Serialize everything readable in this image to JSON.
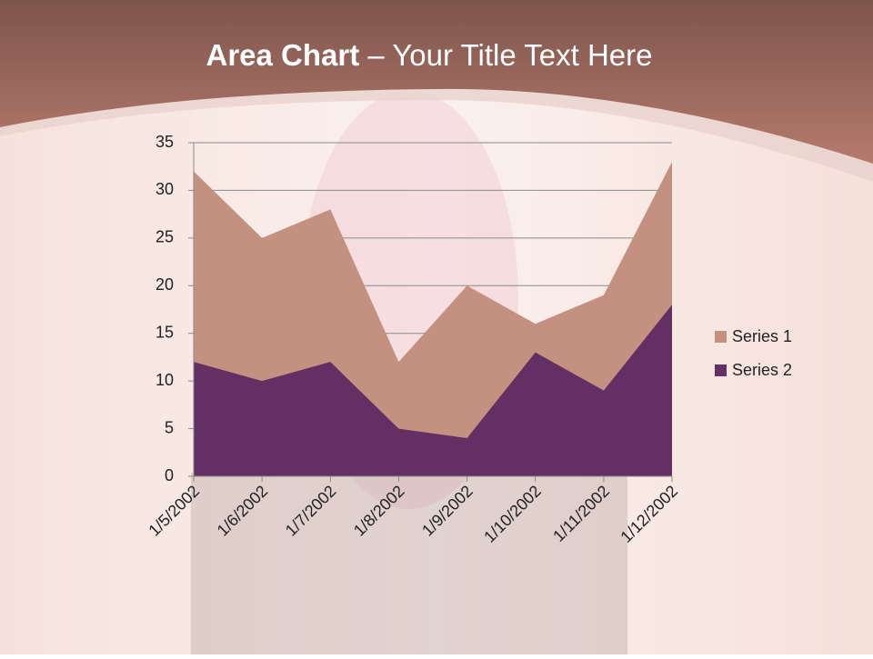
{
  "chart_data": {
    "type": "area",
    "title_parts": [
      "Area Chart",
      " – Your Title Text Here"
    ],
    "categories": [
      "1/5/2002",
      "1/6/2002",
      "1/7/2002",
      "1/8/2002",
      "1/9/2002",
      "1/10/2002",
      "1/11/2002",
      "1/12/2002"
    ],
    "series": [
      {
        "name": "Series 1",
        "color": "#c4907f",
        "values": [
          32,
          25,
          28,
          12,
          20,
          16,
          19,
          33
        ]
      },
      {
        "name": "Series 2",
        "color": "#643064",
        "values": [
          12,
          10,
          12,
          5,
          4,
          13,
          9,
          18
        ]
      }
    ],
    "ylim": [
      0,
      35
    ],
    "yticks": [
      0,
      5,
      10,
      15,
      20,
      25,
      30,
      35
    ],
    "grid": true,
    "legend": "right"
  }
}
